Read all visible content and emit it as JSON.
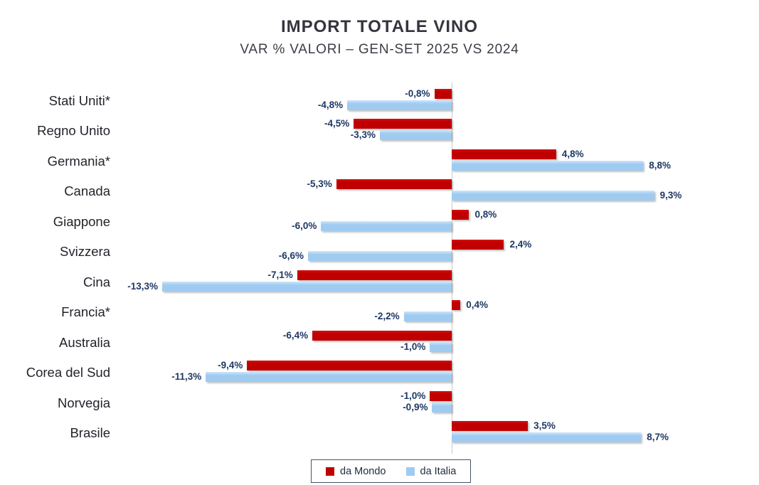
{
  "header": {
    "title": "IMPORT TOTALE VINO",
    "subtitle": "VAR % VALORI – GEN-SET 2025 VS 2024"
  },
  "chart_data": {
    "type": "bar",
    "orientation": "horizontal",
    "title": "IMPORT TOTALE VINO",
    "subtitle": "VAR % VALORI – GEN-SET 2025 VS 2024",
    "unit": "percent",
    "decimal_separator": ",",
    "categories": [
      "Stati Uniti*",
      "Regno Unito",
      "Germania*",
      "Canada",
      "Giappone",
      "Svizzera",
      "Cina",
      "Francia*",
      "Australia",
      "Corea del Sud",
      "Norvegia",
      "Brasile"
    ],
    "series": [
      {
        "name": "da Mondo",
        "color": "#C00000",
        "values": [
          -0.8,
          -4.5,
          4.8,
          -5.3,
          0.8,
          2.4,
          -7.1,
          0.4,
          -6.4,
          -9.4,
          -1.0,
          3.5
        ],
        "labels": [
          "-0,8%",
          "-4,5%",
          "4,8%",
          "-5,3%",
          "0,8%",
          "2,4%",
          "-7,1%",
          "0,4%",
          "-6,4%",
          "-9,4%",
          "-1,0%",
          "3,5%"
        ]
      },
      {
        "name": "da Italia",
        "color": "#9FCBF1",
        "values": [
          -4.8,
          -3.3,
          8.8,
          9.3,
          -6.0,
          -6.6,
          -13.3,
          -2.2,
          -1.0,
          -11.3,
          -0.9,
          8.7
        ],
        "labels": [
          "-4,8%",
          "-3,3%",
          "8,8%",
          "9,3%",
          "-6,0%",
          "-6,6%",
          "-13,3%",
          "-2,2%",
          "-1,0%",
          "-11,3%",
          "-0,9%",
          "8,7%"
        ]
      }
    ],
    "xlim": [
      -15,
      10.5
    ],
    "grid": "off",
    "value_label_color": "#1F3864",
    "legend_position": "bottom"
  },
  "legend": {
    "items": [
      {
        "label": "da Mondo",
        "color": "#C00000"
      },
      {
        "label": "da Italia",
        "color": "#9FCBF1"
      }
    ]
  }
}
